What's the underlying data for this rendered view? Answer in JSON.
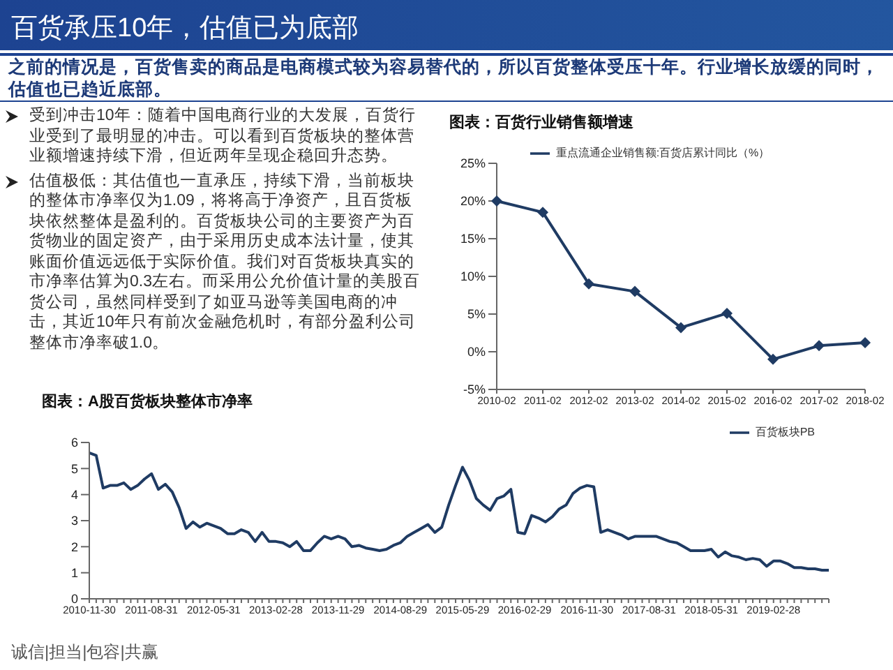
{
  "chart_data": [
    {
      "type": "other",
      "title": "百货承压10年，估值已为底部",
      "subtitle": "之前的情况是，百货售卖的商品是电商模式较为容易替代的，所以百货整体受压十年。行业增长放缓的同时，估值也已趋近底部。",
      "annotations": [
        "受到冲击10年：随着中国电商行业的大发展，百货行业受到了最明显的冲击。可以看到百货板块的整体营业额增速持续下滑，但近两年呈现企稳回升态势。",
        "估值极低：其估值也一直承压，持续下滑，当前板块的整体市净率仅为1.09，将将高于净资产，且百货板块依然整体是盈利的。百货板块公司的主要资产为百货物业的固定资产，由于采用历史成本法计量，使其账面价值远远低于实际价值。我们对百货板块真实的市净率估算为0.3左右。而采用公允价值计量的美股百货公司，虽然同样受到了如亚马逊等美国电商的冲击，其近10年只有前次金融危机时，有部分盈利公司整体市净率破1.0。",
        "诚信|担当|包容|共赢"
      ]
    },
    {
      "type": "line",
      "title": "图表：百货行业销售额增速",
      "categories": [
        "2010-02",
        "2011-02",
        "2012-02",
        "2013-02",
        "2014-02",
        "2015-02",
        "2016-02",
        "2017-02",
        "2018-02"
      ],
      "series": [
        {
          "name": "重点流通企业销售额:百货店累计同比（%）",
          "color": "#1f3b63",
          "values": [
            20,
            18.5,
            9,
            8,
            3.2,
            5.1,
            -1,
            0.8,
            1.2
          ]
        }
      ],
      "ylim": [
        -5,
        25
      ],
      "yticks": [
        {
          "value": -5,
          "label": "-5%"
        },
        {
          "value": 0,
          "label": "0%"
        },
        {
          "value": 5,
          "label": "5%"
        },
        {
          "value": 10,
          "label": "10%"
        },
        {
          "value": 15,
          "label": "15%"
        },
        {
          "value": 20,
          "label": "20%"
        },
        {
          "value": 25,
          "label": "25%"
        }
      ],
      "marker": "diamond",
      "legend": "top",
      "grid": false
    },
    {
      "type": "line",
      "title": "图表：A股百货板块整体市净率",
      "categories": [
        "2010-11-30",
        null,
        null,
        null,
        null,
        null,
        null,
        null,
        null,
        "2011-08-31",
        null,
        null,
        null,
        null,
        null,
        null,
        null,
        null,
        "2012-05-31",
        null,
        null,
        null,
        null,
        null,
        null,
        null,
        null,
        "2013-02-28",
        null,
        null,
        null,
        null,
        null,
        null,
        null,
        null,
        "2013-11-29",
        null,
        null,
        null,
        null,
        null,
        null,
        null,
        null,
        "2014-08-29",
        null,
        null,
        null,
        null,
        null,
        null,
        null,
        null,
        "2015-05-29",
        null,
        null,
        null,
        null,
        null,
        null,
        null,
        null,
        "2016-02-29",
        null,
        null,
        null,
        null,
        null,
        null,
        null,
        null,
        "2016-11-30",
        null,
        null,
        null,
        null,
        null,
        null,
        null,
        null,
        "2017-08-31",
        null,
        null,
        null,
        null,
        null,
        null,
        null,
        null,
        "2018-05-31",
        null,
        null,
        null,
        null,
        null,
        null,
        null,
        null,
        "2019-02-28",
        null,
        null,
        null,
        null,
        null,
        null,
        null,
        null
      ],
      "series": [
        {
          "name": "百货板块PB",
          "color": "#1f3b63",
          "values": [
            5.6,
            5.5,
            4.25,
            4.35,
            4.35,
            4.45,
            4.2,
            4.35,
            4.6,
            4.8,
            4.2,
            4.4,
            4.1,
            3.5,
            2.7,
            2.95,
            2.75,
            2.9,
            2.8,
            2.7,
            2.5,
            2.5,
            2.65,
            2.55,
            2.2,
            2.55,
            2.2,
            2.2,
            2.15,
            2.0,
            2.2,
            1.85,
            1.85,
            2.15,
            2.4,
            2.3,
            2.4,
            2.3,
            2.0,
            2.05,
            1.95,
            1.9,
            1.85,
            1.9,
            2.05,
            2.15,
            2.4,
            2.55,
            2.7,
            2.85,
            2.55,
            2.75,
            3.6,
            4.35,
            5.05,
            4.55,
            3.85,
            3.6,
            3.4,
            3.85,
            3.95,
            4.2,
            2.55,
            2.5,
            3.2,
            3.1,
            2.95,
            3.15,
            3.45,
            3.6,
            4.05,
            4.25,
            4.35,
            4.3,
            2.55,
            2.65,
            2.55,
            2.45,
            2.3,
            2.4,
            2.4,
            2.4,
            2.4,
            2.3,
            2.2,
            2.15,
            2.0,
            1.85,
            1.85,
            1.85,
            1.9,
            1.6,
            1.8,
            1.65,
            1.6,
            1.5,
            1.55,
            1.5,
            1.25,
            1.45,
            1.45,
            1.35,
            1.2,
            1.2,
            1.15,
            1.15,
            1.1,
            1.1
          ]
        }
      ],
      "ylim": [
        0,
        6
      ],
      "yticks": [
        0,
        1,
        2,
        3,
        4,
        5,
        6
      ],
      "marker": "none",
      "legend": "top right",
      "grid": false
    }
  ]
}
